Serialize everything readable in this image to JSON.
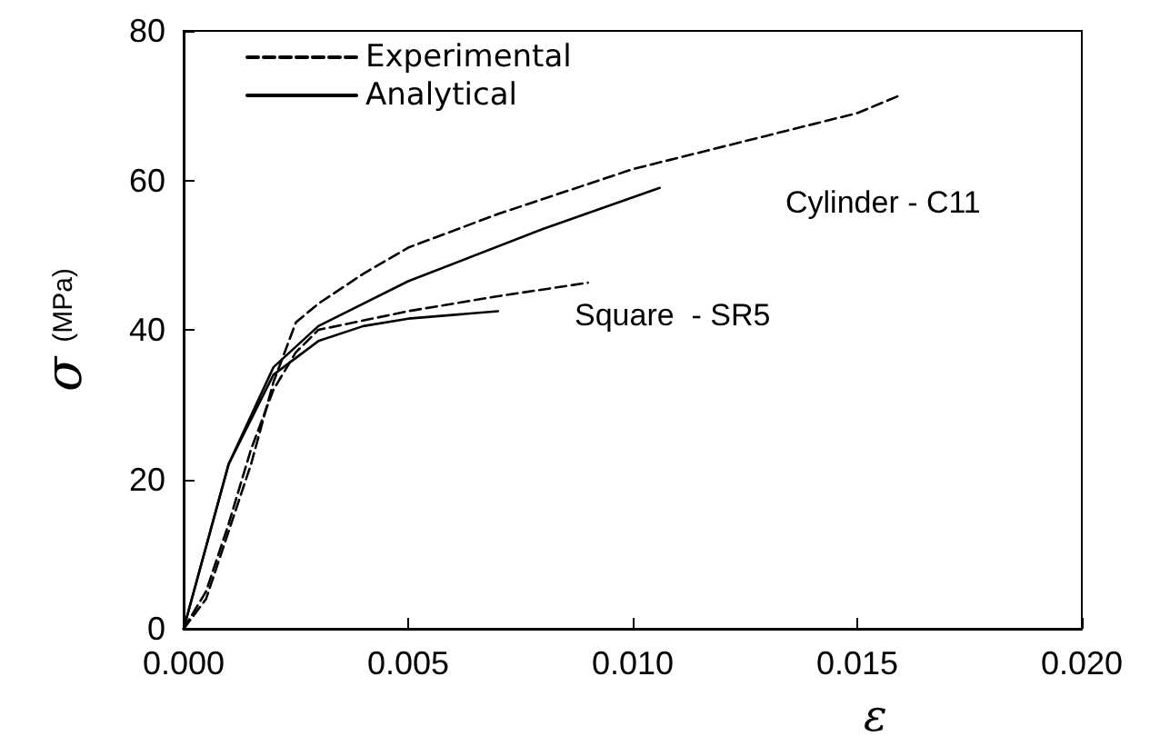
{
  "chart_data": {
    "type": "line",
    "xlabel": "ε",
    "ylabel": "σ (MPa)",
    "xlim": [
      0,
      0.02
    ],
    "xticks": [
      {
        "value": 0,
        "label": "0.000"
      },
      {
        "value": 0.005,
        "label": "0.005"
      },
      {
        "value": 0.01,
        "label": "0.010"
      },
      {
        "value": 0.015,
        "label": "0.015"
      },
      {
        "value": 0.02,
        "label": "0.020"
      }
    ],
    "ylim": [
      0,
      80
    ],
    "yticks": [
      0,
      20,
      40,
      60,
      80
    ],
    "grid": false,
    "legend": "top left",
    "marker": "none",
    "series": [
      {
        "name": "Experimental",
        "color": "#000000",
        "line_style": "dashed",
        "x": [
          0,
          0.0005,
          0.001,
          0.0015,
          0.002,
          0.0025,
          0.003,
          0.004,
          0.005,
          0.007,
          0.01,
          0.013,
          0.015,
          0.016
        ],
        "values": [
          0,
          4,
          13,
          22,
          33,
          41,
          43.5,
          47.5,
          51,
          55.5,
          61.5,
          66,
          69,
          71.5
        ]
      },
      {
        "name": "Analytical",
        "color": "#000000",
        "line_style": "solid",
        "x": [
          0,
          0.001,
          0.002,
          0.003,
          0.005,
          0.008,
          0.0106
        ],
        "values": [
          0,
          22,
          35,
          40.5,
          46.5,
          53.5,
          59
        ]
      },
      {
        "color": "#000000",
        "line_style": "dashed",
        "x": [
          0,
          0.0005,
          0.001,
          0.0015,
          0.002,
          0.0025,
          0.003,
          0.005,
          0.007,
          0.009
        ],
        "values": [
          0,
          5,
          14,
          24,
          32,
          37,
          40,
          42.5,
          44.5,
          46.3
        ]
      },
      {
        "color": "#000000",
        "line_style": "solid",
        "x": [
          0,
          0.001,
          0.002,
          0.003,
          0.004,
          0.005,
          0.007
        ],
        "values": [
          0,
          22,
          34,
          38.5,
          40.5,
          41.5,
          42.5
        ]
      }
    ],
    "annotations": [
      "Cylinder - C11",
      "Square  - SR5"
    ]
  }
}
